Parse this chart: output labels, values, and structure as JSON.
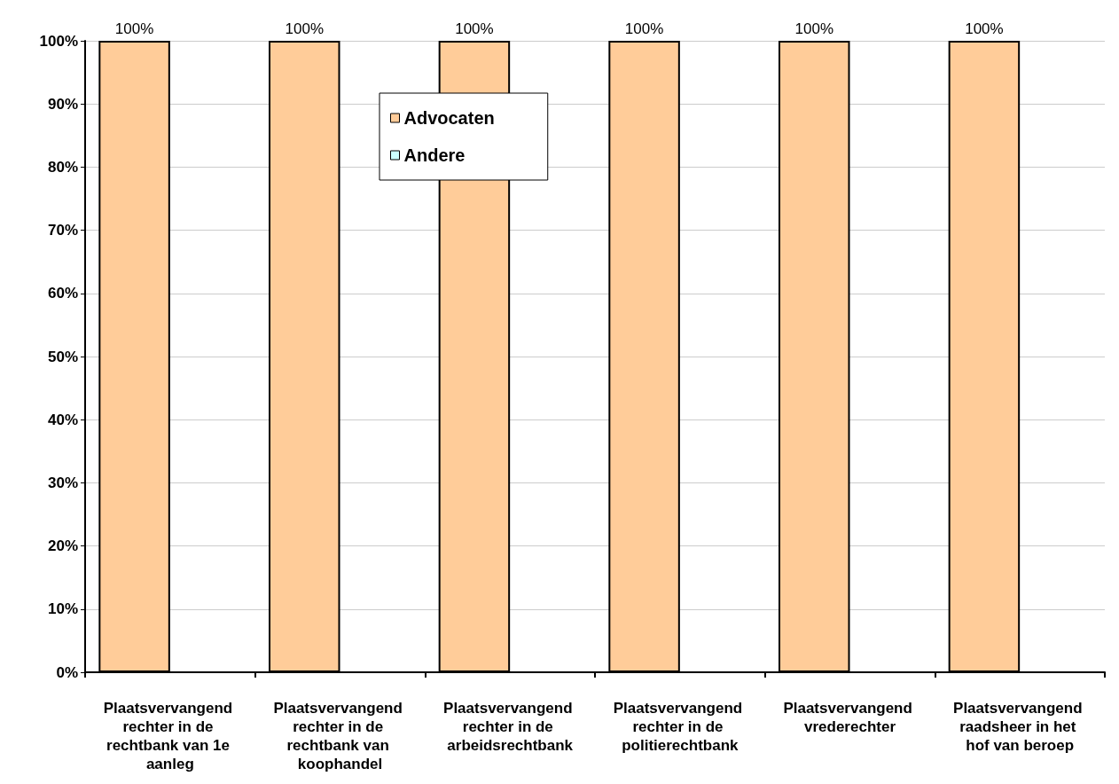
{
  "chart_data": {
    "type": "bar",
    "categories": [
      "Plaatsvervangend rechter in de rechtbank van 1e aanleg",
      "Plaatsvervangend rechter in de rechtbank van koophandel",
      "Plaatsvervangend rechter in de arbeidsrechtbank",
      "Plaatsvervangend rechter in de politierechtbank",
      "Plaatsvervangend vrederechter",
      "Plaatsvervangend raadsheer in het hof van beroep"
    ],
    "series": [
      {
        "name": "Advocaten",
        "color": "#ffcc99",
        "values": [
          100,
          100,
          100,
          100,
          100,
          100
        ],
        "value_labels": [
          "100%",
          "100%",
          "100%",
          "100%",
          "100%",
          "100%"
        ]
      },
      {
        "name": "Andere",
        "color": "#ccffff",
        "values": [
          0,
          0,
          0,
          0,
          0,
          0
        ]
      }
    ],
    "ylim": [
      0,
      100
    ],
    "yticks": [
      {
        "value": 0,
        "label": "0%"
      },
      {
        "value": 10,
        "label": "10%"
      },
      {
        "value": 20,
        "label": "20%"
      },
      {
        "value": 30,
        "label": "30%"
      },
      {
        "value": 40,
        "label": "40%"
      },
      {
        "value": 50,
        "label": "50%"
      },
      {
        "value": 60,
        "label": "60%"
      },
      {
        "value": 70,
        "label": "70%"
      },
      {
        "value": 80,
        "label": "80%"
      },
      {
        "value": 90,
        "label": "90%"
      },
      {
        "value": 100,
        "label": "100%"
      }
    ],
    "grid": "y",
    "legend": "top"
  }
}
